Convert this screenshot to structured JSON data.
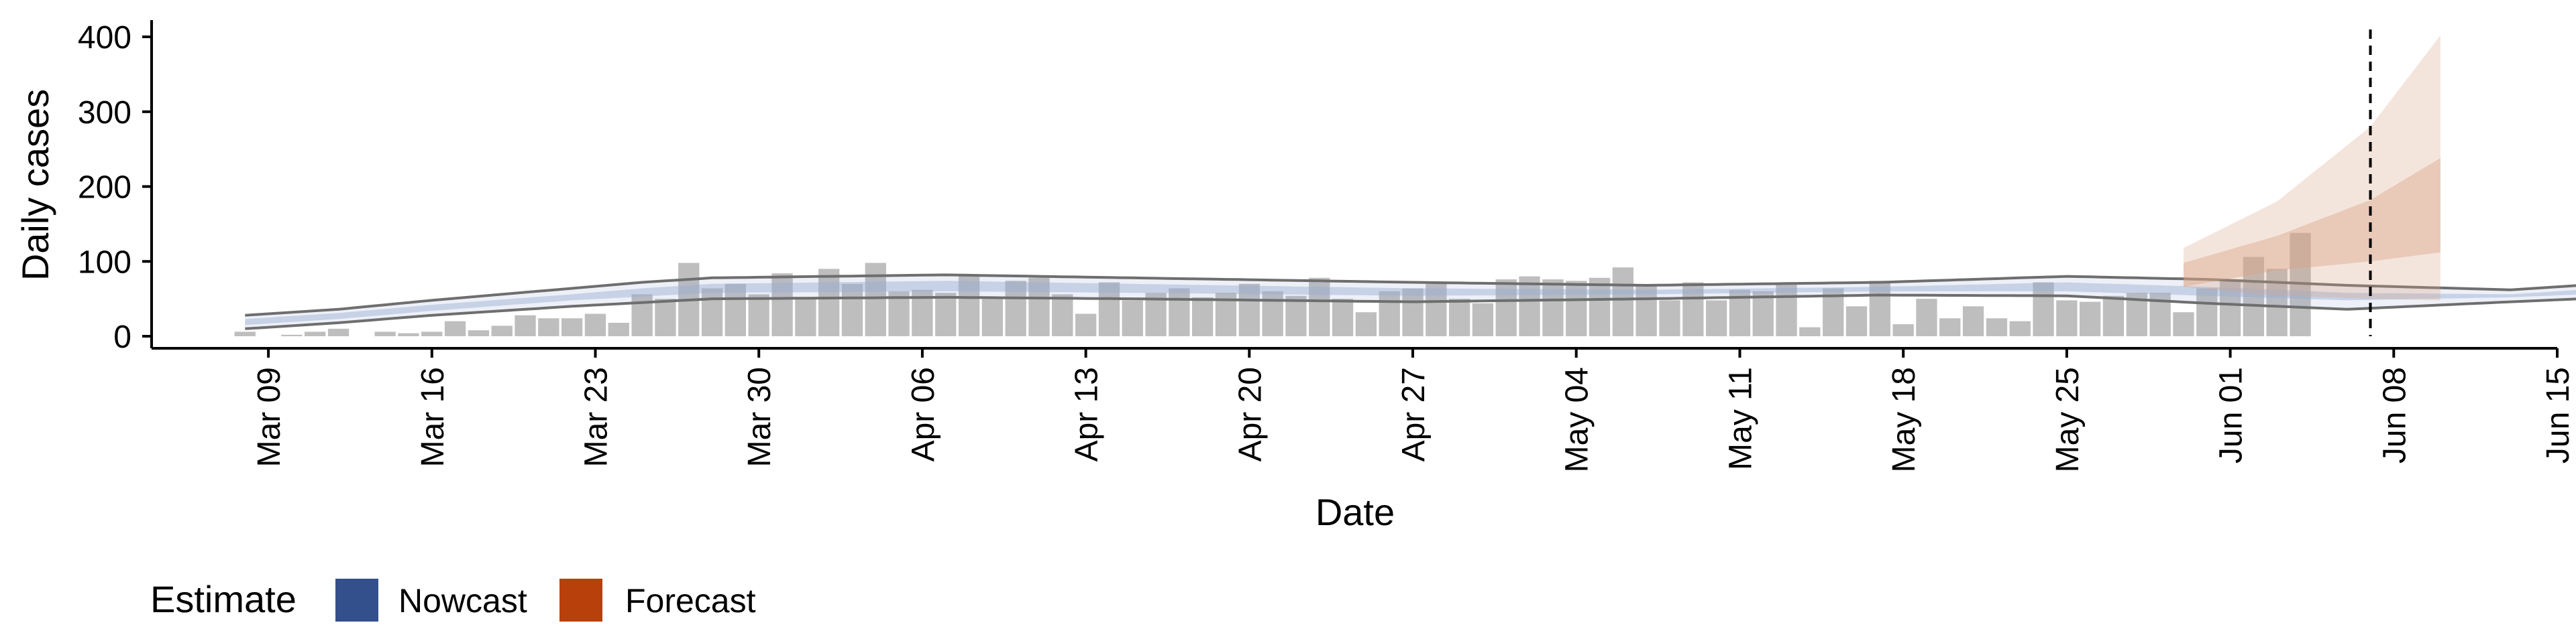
{
  "chart_data": {
    "type": "bar",
    "xlabel": "Date",
    "ylabel": "Daily cases",
    "ylim": [
      0,
      420
    ],
    "yticks": [
      0,
      100,
      200,
      300,
      400
    ],
    "x_axis": {
      "start": "2020-03-04",
      "end": "2020-06-15",
      "ticks": [
        {
          "date": "2020-03-09",
          "label": "Mar 09"
        },
        {
          "date": "2020-03-16",
          "label": "Mar 16"
        },
        {
          "date": "2020-03-23",
          "label": "Mar 23"
        },
        {
          "date": "2020-03-30",
          "label": "Mar 30"
        },
        {
          "date": "2020-04-06",
          "label": "Apr 06"
        },
        {
          "date": "2020-04-13",
          "label": "Apr 13"
        },
        {
          "date": "2020-04-20",
          "label": "Apr 20"
        },
        {
          "date": "2020-04-27",
          "label": "Apr 27"
        },
        {
          "date": "2020-05-04",
          "label": "May 04"
        },
        {
          "date": "2020-05-11",
          "label": "May 11"
        },
        {
          "date": "2020-05-18",
          "label": "May 18"
        },
        {
          "date": "2020-05-25",
          "label": "May 25"
        },
        {
          "date": "2020-06-01",
          "label": "Jun 01"
        },
        {
          "date": "2020-06-08",
          "label": "Jun 08"
        },
        {
          "date": "2020-06-15",
          "label": "Jun 15"
        }
      ]
    },
    "reported_cases": {
      "start": "2020-03-08",
      "values": [
        6,
        0,
        2,
        6,
        10,
        0,
        6,
        4,
        6,
        20,
        8,
        14,
        28,
        24,
        24,
        30,
        18,
        56,
        50,
        98,
        64,
        70,
        56,
        84,
        52,
        90,
        70,
        98,
        60,
        62,
        58,
        82,
        50,
        74,
        78,
        56,
        30,
        72,
        48,
        58,
        64,
        52,
        58,
        70,
        60,
        54,
        78,
        50,
        32,
        60,
        64,
        70,
        50,
        44,
        76,
        80,
        76,
        74,
        78,
        92,
        68,
        48,
        72,
        48,
        62,
        60,
        70,
        12,
        64,
        40,
        74,
        16,
        50,
        24,
        40,
        24,
        20,
        72,
        48,
        46,
        54,
        58,
        58,
        32,
        64,
        76,
        106,
        90,
        138
      ]
    },
    "nowcast": {
      "start": "2020-03-08",
      "end": "2020-05-28",
      "outer_lower": [
        [
          0,
          10
        ],
        [
          4,
          18
        ],
        [
          8,
          28
        ],
        [
          14,
          40
        ],
        [
          17,
          45
        ],
        [
          20,
          50
        ],
        [
          30,
          52
        ],
        [
          38,
          50
        ],
        [
          50,
          46
        ],
        [
          60,
          50
        ],
        [
          70,
          55
        ],
        [
          78,
          54
        ],
        [
          84,
          44
        ],
        [
          90,
          36
        ],
        [
          97,
          46
        ],
        [
          100,
          50
        ],
        [
          107,
          62
        ],
        [
          111,
          66
        ]
      ],
      "outer_upper": [
        [
          0,
          28
        ],
        [
          4,
          36
        ],
        [
          8,
          48
        ],
        [
          14,
          64
        ],
        [
          17,
          72
        ],
        [
          20,
          78
        ],
        [
          30,
          82
        ],
        [
          38,
          78
        ],
        [
          50,
          72
        ],
        [
          60,
          68
        ],
        [
          70,
          72
        ],
        [
          78,
          80
        ],
        [
          84,
          76
        ],
        [
          90,
          68
        ],
        [
          97,
          62
        ],
        [
          100,
          68
        ],
        [
          107,
          88
        ],
        [
          111,
          96
        ]
      ],
      "inner_lower": [
        [
          0,
          15
        ],
        [
          4,
          23
        ],
        [
          8,
          34
        ],
        [
          14,
          48
        ],
        [
          17,
          53
        ],
        [
          20,
          58
        ],
        [
          30,
          60
        ],
        [
          38,
          58
        ],
        [
          50,
          54
        ],
        [
          60,
          56
        ],
        [
          70,
          60
        ],
        [
          78,
          60
        ],
        [
          84,
          54
        ],
        [
          90,
          48
        ],
        [
          97,
          52
        ],
        [
          100,
          56
        ],
        [
          107,
          70
        ],
        [
          111,
          74
        ]
      ],
      "inner_upper": [
        [
          0,
          23
        ],
        [
          4,
          31
        ],
        [
          8,
          42
        ],
        [
          14,
          56
        ],
        [
          17,
          64
        ],
        [
          20,
          70
        ],
        [
          30,
          74
        ],
        [
          38,
          70
        ],
        [
          50,
          64
        ],
        [
          60,
          62
        ],
        [
          70,
          66
        ],
        [
          78,
          72
        ],
        [
          84,
          66
        ],
        [
          90,
          58
        ],
        [
          97,
          56
        ],
        [
          100,
          62
        ],
        [
          107,
          78
        ],
        [
          111,
          86
        ]
      ]
    },
    "forecast": {
      "start": "2020-05-30",
      "end": "2020-06-10",
      "outer_lower": [
        [
          0,
          66
        ],
        [
          4,
          54
        ],
        [
          8,
          50
        ],
        [
          11,
          48
        ]
      ],
      "outer_upper": [
        [
          0,
          118
        ],
        [
          4,
          180
        ],
        [
          8,
          280
        ],
        [
          11,
          402
        ]
      ],
      "inner_lower": [
        [
          0,
          66
        ],
        [
          4,
          88
        ],
        [
          8,
          100
        ],
        [
          11,
          112
        ]
      ],
      "inner_upper": [
        [
          0,
          98
        ],
        [
          4,
          134
        ],
        [
          8,
          182
        ],
        [
          11,
          238
        ]
      ]
    },
    "reference_date": "2020-06-07",
    "legend": {
      "title": "Estimate",
      "placement": "bottom-left",
      "items": [
        {
          "label": "Nowcast",
          "color": "#34508c"
        },
        {
          "label": "Forecast",
          "color": "#b8400a"
        }
      ]
    },
    "colors": {
      "bars": "#bebebe",
      "nowcast_band": "#9aaed2",
      "forecast_band": "#d9a383",
      "band_edge": "#6e6e6e",
      "reference_line": "#000000"
    }
  }
}
